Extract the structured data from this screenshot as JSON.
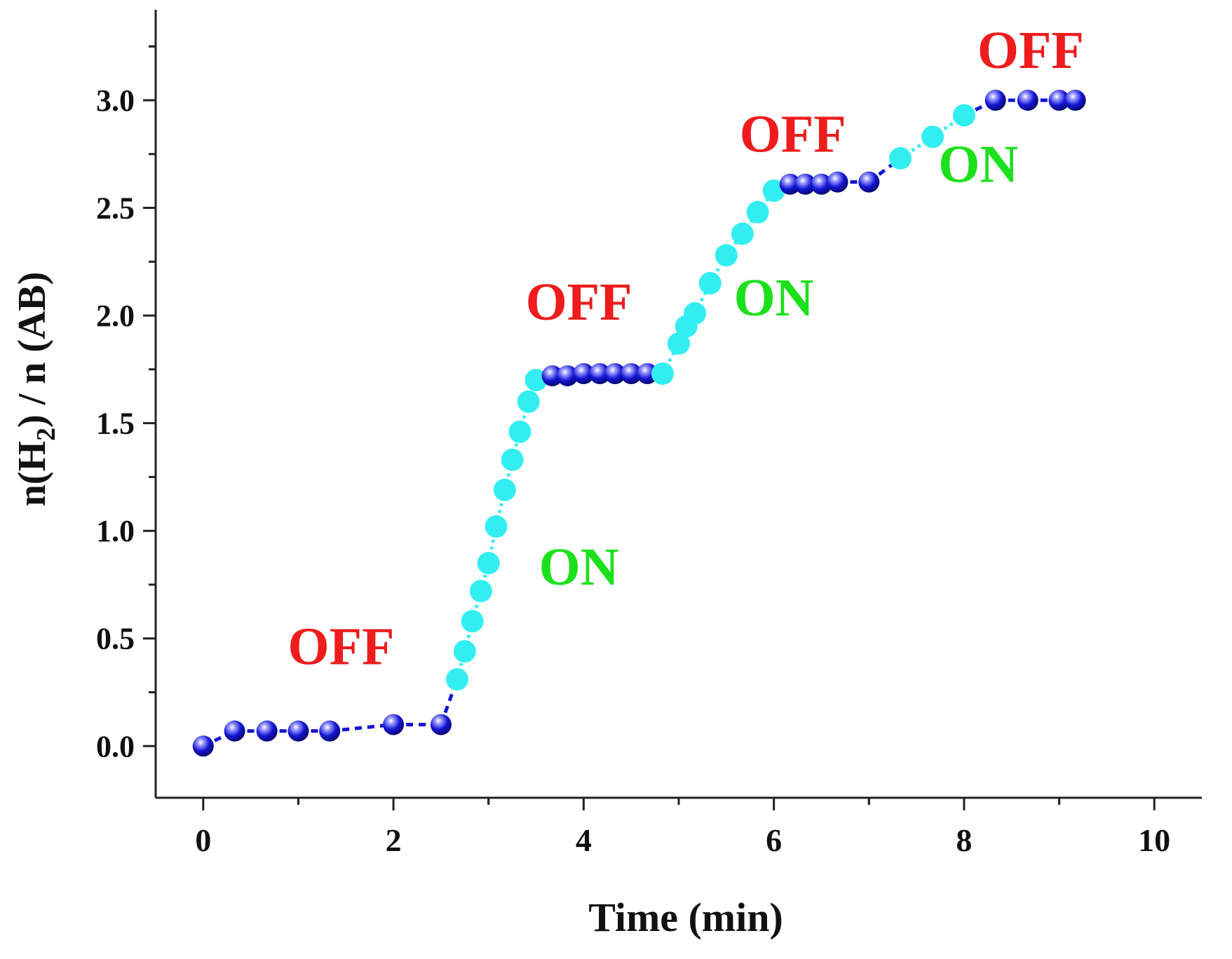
{
  "chart_data": {
    "type": "scatter",
    "title": "",
    "xlabel": "Time (min)",
    "ylabel": {
      "prefix": "n(H",
      "subscript": "2",
      "suffix": ") / n (AB)"
    },
    "xlim": [
      -0.5,
      10.5
    ],
    "ylim": [
      -0.24,
      3.42
    ],
    "x_ticks": [
      0,
      2,
      4,
      6,
      8,
      10
    ],
    "x_tick_labels": [
      "0",
      "2",
      "4",
      "6",
      "8",
      "10"
    ],
    "y_ticks": [
      0.0,
      0.5,
      1.0,
      1.5,
      2.0,
      2.5,
      3.0
    ],
    "y_tick_labels": [
      "0.0",
      "0.5",
      "1.0",
      "1.5",
      "2.0",
      "2.5",
      "3.0"
    ],
    "grid": false,
    "legend": "none",
    "colors": {
      "off_points": "#1414d2",
      "on_points": "#33eef0",
      "off_label": "#ee1c1c",
      "on_label": "#1de01d",
      "axis": "#222222"
    },
    "series": [
      {
        "state": "OFF",
        "x": [
          0.0,
          0.33,
          0.67,
          1.0,
          1.33,
          2.0,
          2.5
        ],
        "y": [
          0.0,
          0.07,
          0.07,
          0.07,
          0.07,
          0.1,
          0.1
        ]
      },
      {
        "state": "ON",
        "x": [
          2.67,
          2.75,
          2.83,
          2.92,
          3.0,
          3.08,
          3.17,
          3.25,
          3.33,
          3.42,
          3.5
        ],
        "y": [
          0.31,
          0.44,
          0.58,
          0.72,
          0.85,
          1.02,
          1.19,
          1.33,
          1.46,
          1.6,
          1.7
        ]
      },
      {
        "state": "OFF",
        "x": [
          3.67,
          3.83,
          4.0,
          4.17,
          4.33,
          4.5,
          4.67
        ],
        "y": [
          1.72,
          1.72,
          1.73,
          1.73,
          1.73,
          1.73,
          1.73
        ]
      },
      {
        "state": "ON",
        "x": [
          4.83,
          5.0,
          5.08,
          5.17,
          5.33,
          5.5,
          5.67,
          5.83,
          6.0
        ],
        "y": [
          1.73,
          1.87,
          1.95,
          2.01,
          2.15,
          2.28,
          2.38,
          2.48,
          2.58
        ]
      },
      {
        "state": "OFF",
        "x": [
          6.17,
          6.33,
          6.5,
          6.67,
          7.0
        ],
        "y": [
          2.61,
          2.61,
          2.61,
          2.62,
          2.62
        ]
      },
      {
        "state": "ON",
        "x": [
          7.33,
          7.67,
          8.0
        ],
        "y": [
          2.73,
          2.83,
          2.93
        ]
      },
      {
        "state": "OFF",
        "x": [
          8.33,
          8.67,
          9.0,
          9.17
        ],
        "y": [
          3.0,
          3.0,
          3.0,
          3.0
        ]
      }
    ],
    "annotations": [
      {
        "text": "OFF",
        "x": 1.45,
        "y": 0.38,
        "state": "OFF"
      },
      {
        "text": "ON",
        "x": 3.95,
        "y": 0.75,
        "state": "ON"
      },
      {
        "text": "OFF",
        "x": 3.95,
        "y": 1.98,
        "state": "OFF"
      },
      {
        "text": "ON",
        "x": 6.0,
        "y": 2.0,
        "state": "ON"
      },
      {
        "text": "OFF",
        "x": 6.2,
        "y": 2.76,
        "state": "OFF"
      },
      {
        "text": "ON",
        "x": 8.15,
        "y": 2.62,
        "state": "ON"
      },
      {
        "text": "OFF",
        "x": 8.7,
        "y": 3.15,
        "state": "OFF"
      }
    ]
  }
}
